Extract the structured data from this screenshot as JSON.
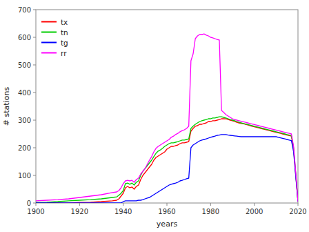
{
  "chart_data": {
    "type": "line",
    "xlabel": "years",
    "ylabel": "# stations",
    "xlim": [
      1900,
      2020
    ],
    "ylim": [
      0,
      700
    ],
    "xticks": [
      1900,
      1920,
      1940,
      1960,
      1980,
      2000,
      2020
    ],
    "yticks": [
      0,
      100,
      200,
      300,
      400,
      500,
      600,
      700
    ],
    "grid": false,
    "legend": "upper left",
    "x": [
      1900,
      1905,
      1910,
      1915,
      1920,
      1925,
      1930,
      1935,
      1937,
      1938,
      1939,
      1940,
      1941,
      1942,
      1943,
      1944,
      1945,
      1946,
      1947,
      1948,
      1949,
      1950,
      1951,
      1952,
      1953,
      1954,
      1955,
      1956,
      1957,
      1958,
      1959,
      1960,
      1961,
      1962,
      1963,
      1964,
      1965,
      1966,
      1967,
      1968,
      1969,
      1970,
      1971,
      1972,
      1973,
      1974,
      1975,
      1976,
      1977,
      1978,
      1979,
      1980,
      1981,
      1982,
      1983,
      1984,
      1985,
      1986,
      1987,
      1988,
      1989,
      1990,
      1991,
      1992,
      1993,
      1994,
      1995,
      1996,
      1997,
      1998,
      1999,
      2000,
      2001,
      2002,
      2003,
      2004,
      2005,
      2006,
      2007,
      2008,
      2009,
      2010,
      2011,
      2012,
      2013,
      2014,
      2015,
      2016,
      2017,
      2018,
      2019,
      2020
    ],
    "series": [
      {
        "name": "tx",
        "color": "#ff0000",
        "values": [
          0,
          0,
          0,
          0,
          2,
          3,
          5,
          8,
          10,
          15,
          25,
          35,
          55,
          60,
          55,
          58,
          50,
          60,
          65,
          85,
          100,
          110,
          120,
          130,
          140,
          155,
          165,
          170,
          175,
          180,
          185,
          195,
          200,
          205,
          205,
          208,
          210,
          215,
          218,
          218,
          220,
          222,
          260,
          270,
          278,
          280,
          285,
          285,
          288,
          290,
          295,
          295,
          298,
          298,
          300,
          302,
          305,
          305,
          305,
          302,
          300,
          298,
          295,
          292,
          290,
          288,
          287,
          285,
          283,
          280,
          278,
          276,
          274,
          272,
          270,
          268,
          266,
          264,
          262,
          260,
          258,
          256,
          254,
          252,
          250,
          248,
          246,
          244,
          242,
          195,
          100,
          5
        ]
      },
      {
        "name": "tn",
        "color": "#00cc00",
        "values": [
          2,
          3,
          5,
          8,
          10,
          12,
          15,
          20,
          22,
          28,
          35,
          45,
          70,
          72,
          68,
          72,
          65,
          75,
          80,
          100,
          115,
          125,
          135,
          145,
          155,
          168,
          180,
          188,
          192,
          198,
          205,
          210,
          215,
          218,
          218,
          220,
          222,
          225,
          228,
          228,
          230,
          232,
          270,
          278,
          285,
          290,
          295,
          298,
          300,
          302,
          305,
          305,
          308,
          308,
          310,
          312,
          312,
          310,
          308,
          305,
          302,
          300,
          298,
          295,
          292,
          290,
          288,
          286,
          284,
          282,
          280,
          278,
          276,
          274,
          272,
          270,
          268,
          266,
          264,
          262,
          260,
          258,
          256,
          254,
          252,
          250,
          248,
          246,
          244,
          200,
          105,
          5
        ]
      },
      {
        "name": "tg",
        "color": "#0000ff",
        "values": [
          0,
          0,
          0,
          0,
          0,
          0,
          0,
          0,
          0,
          0,
          0,
          5,
          8,
          8,
          8,
          8,
          8,
          8,
          10,
          10,
          12,
          15,
          18,
          20,
          25,
          30,
          35,
          40,
          45,
          50,
          55,
          60,
          65,
          68,
          70,
          72,
          75,
          80,
          82,
          85,
          88,
          90,
          200,
          210,
          215,
          220,
          225,
          228,
          230,
          232,
          235,
          238,
          240,
          242,
          245,
          246,
          248,
          248,
          248,
          246,
          245,
          244,
          243,
          242,
          241,
          240,
          240,
          240,
          240,
          240,
          240,
          240,
          240,
          240,
          240,
          240,
          240,
          240,
          240,
          240,
          240,
          240,
          238,
          236,
          234,
          232,
          230,
          228,
          226,
          185,
          95,
          5
        ]
      },
      {
        "name": "rr",
        "color": "#ff00ff",
        "values": [
          8,
          10,
          12,
          15,
          20,
          25,
          30,
          38,
          40,
          45,
          55,
          70,
          80,
          82,
          80,
          82,
          75,
          85,
          90,
          105,
          115,
          125,
          140,
          155,
          168,
          185,
          198,
          205,
          210,
          215,
          220,
          225,
          230,
          238,
          242,
          248,
          252,
          258,
          262,
          265,
          270,
          278,
          515,
          540,
          595,
          605,
          610,
          610,
          612,
          608,
          605,
          600,
          598,
          595,
          592,
          590,
          335,
          328,
          320,
          315,
          310,
          305,
          302,
          300,
          298,
          296,
          294,
          292,
          290,
          288,
          286,
          284,
          282,
          280,
          278,
          276,
          274,
          272,
          270,
          268,
          266,
          264,
          262,
          260,
          258,
          256,
          254,
          252,
          250,
          205,
          110,
          5
        ]
      }
    ]
  }
}
